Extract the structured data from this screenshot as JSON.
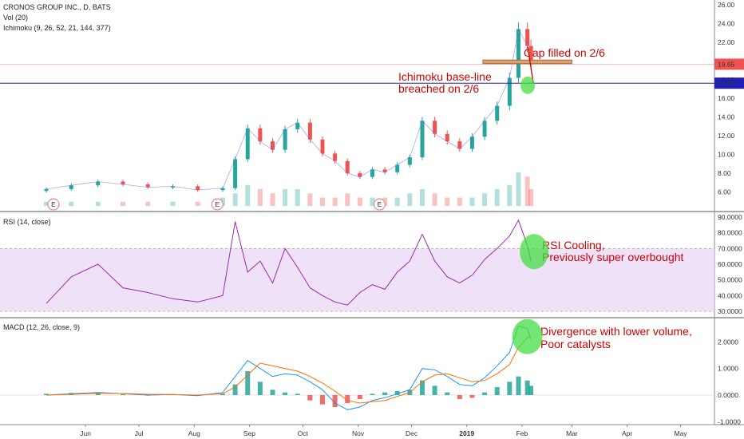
{
  "chart_data": [
    {
      "type": "candlestick",
      "title": "CRONOS GROUP INC., D, BATS",
      "indicators": [
        "Vol (20)",
        "Ichimoku (9, 26, 52, 21, 144, 377)"
      ],
      "ylim": [
        4.5,
        26.0
      ],
      "y_ticks": [
        "26.00",
        "24.00",
        "22.00",
        "20.00",
        "18.00",
        "16.00",
        "14.00",
        "12.00",
        "10.00",
        "8.00",
        "6.00"
      ],
      "last_price_label": "19.65",
      "baseline_label": "17.62",
      "last_price": 19.65,
      "baseline": 17.62,
      "ohlc_x": [
        "2018-05-10",
        "2018-05-24",
        "2018-06-08",
        "2018-06-22",
        "2018-07-06",
        "2018-07-20",
        "2018-08-03",
        "2018-08-17",
        "2018-08-24",
        "2018-08-31",
        "2018-09-07",
        "2018-09-14",
        "2018-09-21",
        "2018-09-28",
        "2018-10-05",
        "2018-10-12",
        "2018-10-19",
        "2018-10-26",
        "2018-11-02",
        "2018-11-09",
        "2018-11-16",
        "2018-11-23",
        "2018-11-30",
        "2018-12-07",
        "2018-12-14",
        "2018-12-21",
        "2018-12-28",
        "2019-01-04",
        "2019-01-11",
        "2019-01-18",
        "2019-01-25",
        "2019-01-30",
        "2019-02-04",
        "2019-02-06"
      ],
      "close": [
        6.3,
        6.7,
        7.1,
        6.8,
        6.5,
        6.6,
        6.2,
        6.4,
        9.5,
        12.8,
        11.4,
        10.5,
        12.7,
        13.4,
        11.6,
        10.1,
        9.3,
        8.0,
        7.6,
        8.4,
        8.1,
        8.9,
        9.7,
        13.6,
        12.2,
        11.4,
        10.6,
        11.9,
        13.6,
        15.2,
        18.2,
        23.4,
        21.6,
        19.65
      ],
      "volume_scale": "relative",
      "volume": [
        1,
        1,
        1,
        1,
        1,
        1,
        1,
        2,
        3,
        5,
        4,
        3,
        4,
        4,
        3,
        2,
        2,
        3,
        2,
        2,
        2,
        2,
        3,
        4,
        3,
        2,
        2,
        2,
        3,
        4,
        5,
        8,
        7,
        4
      ],
      "earnings_markers": [
        "E",
        "E",
        "E"
      ]
    },
    {
      "type": "line",
      "title": "RSI (14, close)",
      "ylim": [
        27,
        92
      ],
      "y_ticks": [
        "90.0000",
        "80.0000",
        "70.0000",
        "60.0000",
        "50.0000",
        "40.0000",
        "30.0000"
      ],
      "band": [
        30,
        70
      ],
      "rsi": [
        35,
        52,
        60,
        45,
        42,
        38,
        36,
        40,
        87,
        55,
        62,
        48,
        70,
        58,
        45,
        40,
        36,
        34,
        42,
        47,
        44,
        55,
        62,
        79,
        62,
        52,
        48,
        53,
        63,
        70,
        78,
        88,
        72,
        62
      ]
    },
    {
      "type": "bar",
      "title": "MACD (12, 26, close, 9)",
      "ylim": [
        -1.05,
        2.85
      ],
      "y_ticks": [
        "2.0000",
        "1.0000",
        "0.0000",
        "-1.0000"
      ],
      "histogram": [
        0.05,
        0.08,
        0.1,
        0.03,
        -0.02,
        0.02,
        -0.03,
        0.05,
        0.4,
        0.9,
        0.5,
        0.2,
        0.1,
        0.05,
        -0.2,
        -0.35,
        -0.45,
        -0.3,
        -0.15,
        0.05,
        0.1,
        0.15,
        0.2,
        0.55,
        0.35,
        0.1,
        -0.15,
        -0.1,
        0.1,
        0.3,
        0.5,
        0.7,
        0.55,
        0.35
      ],
      "macd_line": [
        0.0,
        0.05,
        0.1,
        0.05,
        0.0,
        0.02,
        -0.02,
        0.1,
        0.7,
        1.3,
        1.0,
        0.7,
        0.8,
        0.75,
        0.5,
        0.2,
        -0.3,
        -0.55,
        -0.45,
        -0.2,
        -0.1,
        0.05,
        0.2,
        1.0,
        0.95,
        0.7,
        0.4,
        0.35,
        0.65,
        1.1,
        1.6,
        2.6,
        2.5,
        2.1
      ],
      "signal_line": [
        0.0,
        0.03,
        0.07,
        0.06,
        0.03,
        0.02,
        0.0,
        0.05,
        0.3,
        0.75,
        1.2,
        1.1,
        1.0,
        0.9,
        0.7,
        0.45,
        0.15,
        -0.2,
        -0.3,
        -0.25,
        -0.2,
        -0.05,
        0.1,
        0.5,
        0.75,
        0.8,
        0.65,
        0.5,
        0.55,
        0.8,
        1.15,
        1.8,
        2.15,
        2.2
      ]
    }
  ],
  "x_axis": {
    "labels": [
      "Jun",
      "Jul",
      "Aug",
      "Sep",
      "Oct",
      "Nov",
      "Dec",
      "2019",
      "Feb",
      "Mar",
      "Apr",
      "May"
    ],
    "label_dates": [
      "2018-06-01",
      "2018-07-01",
      "2018-08-01",
      "2018-09-01",
      "2018-10-01",
      "2018-11-01",
      "2018-12-01",
      "2019-01-01",
      "2019-02-01",
      "2019-03-01",
      "2019-04-01",
      "2019-05-01"
    ],
    "range": [
      "2018-04-14",
      "2019-05-20"
    ]
  },
  "annotations": {
    "gap": "Gap filled on 2/6",
    "ichimoku_1": "Ichimoku base-line",
    "ichimoku_2": "breached on 2/6",
    "rsi_1": "RSI Cooling,",
    "rsi_2": "Previously super overbought",
    "macd_1": "Divergence with lower volume,",
    "macd_2": "Poor catalysts"
  },
  "colors": {
    "up": "#26a69a",
    "down": "#ef5350",
    "rsi_line": "#9c27b0",
    "rsi_band": "#e8d5f5",
    "baseline_line": "#1f1fb5",
    "highlight": "#44dd44",
    "annotation": "#d00000",
    "signal": "#ff6d00",
    "macd": "#2196f3"
  }
}
